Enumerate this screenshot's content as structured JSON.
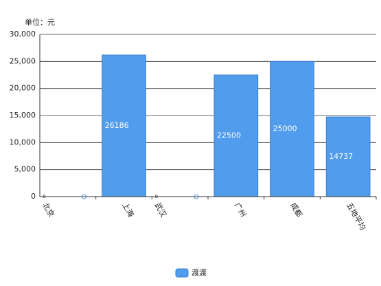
{
  "chart_data": {
    "type": "bar",
    "y_label": "单位：元",
    "categories": [
      "北京",
      "上海",
      "武汉",
      "广州",
      "成都",
      "五地平均"
    ],
    "series": [
      {
        "name": "渡渡",
        "color": "#519cec",
        "values": [
          0,
          26186,
          0,
          22500,
          25000,
          14737
        ]
      }
    ],
    "ylim": [
      0,
      30000
    ],
    "yticks": [
      0,
      {
        "value": 5000,
        "label": "5,000"
      },
      {
        "value": 10000,
        "label": "10,000"
      },
      {
        "value": 15000,
        "label": "15,000"
      },
      {
        "value": 20000,
        "label": "20,000"
      },
      {
        "value": 25000,
        "label": "25,000"
      },
      {
        "value": 30000,
        "label": "30,000"
      }
    ],
    "grid": true,
    "legend": "bottom"
  }
}
